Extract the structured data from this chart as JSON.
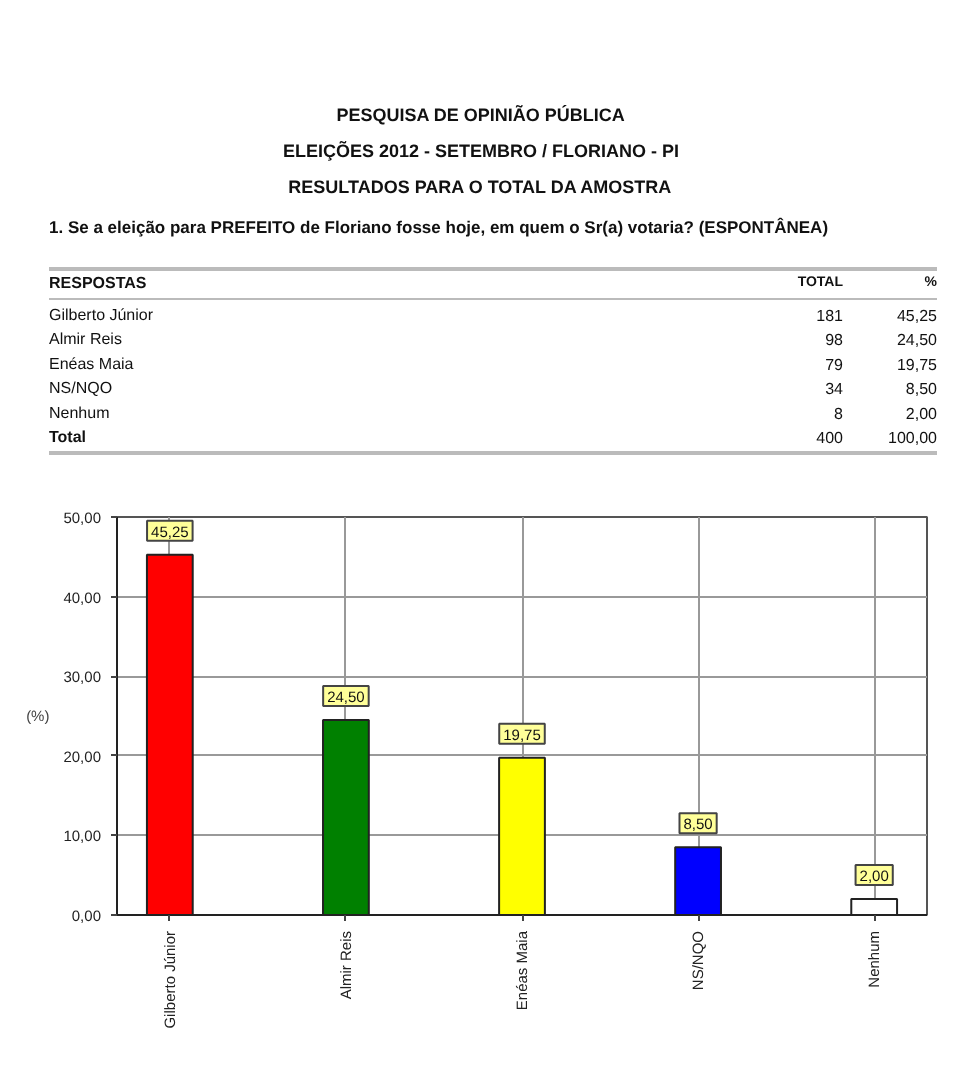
{
  "chart_data": [
    {
      "type": "other",
      "title": "PESQUISA DE OPINIÃO PÚBLICA",
      "subtitle": "ELEIÇÕES 2012 - SETEMBRO / FLORIANO - PI\nRESULTADOS PARA O TOTAL DA AMOSTRA",
      "annotations": [
        "1. Se a eleição para PREFEITO de Floriano fosse hoje, em quem o Sr(a) votaria? (ESPONTÂNEA)"
      ],
      "ylabel": "RESPOSTAS",
      "categories": [
        "Gilberto Júnior",
        "Almir Reis",
        "Enéas Maia",
        "NS/NQO",
        "Nenhum",
        "Total"
      ],
      "series": [
        {
          "name": "TOTAL",
          "values": [
            181,
            98,
            79,
            34,
            8,
            400
          ],
          "value_labels": [
            "181",
            "98",
            "79",
            "34",
            "8",
            "400"
          ]
        },
        {
          "name": "%",
          "values": [
            45.25,
            24.5,
            19.75,
            8.5,
            2.0,
            100.0
          ],
          "value_labels": [
            "45,25",
            "24,50",
            "19,75",
            "8,50",
            "2,00",
            "100,00"
          ]
        }
      ]
    },
    {
      "type": "bar",
      "ylabel": "(%)",
      "categories": [
        "Gilberto Júnior",
        "Almir Reis",
        "Enéas Maia",
        "NS/NQO",
        "Nenhum"
      ],
      "values": [
        45.25,
        24.5,
        19.75,
        8.5,
        2.0
      ],
      "colors": [
        "#ff0000",
        "#008000",
        "#ffff00",
        "#0000ff",
        "#ffffff"
      ],
      "value_labels": [
        "45,25",
        "24,50",
        "19,75",
        "8,50",
        "2,00"
      ],
      "ylim": [
        0,
        50
      ],
      "yticks": [
        {
          "value": 0,
          "label": "0,00"
        },
        {
          "value": 10,
          "label": "10,00"
        },
        {
          "value": 20,
          "label": "20,00"
        },
        {
          "value": 30,
          "label": "30,00"
        },
        {
          "value": 40,
          "label": "40,00"
        },
        {
          "value": 50,
          "label": "50,00"
        }
      ],
      "grid": true
    }
  ]
}
